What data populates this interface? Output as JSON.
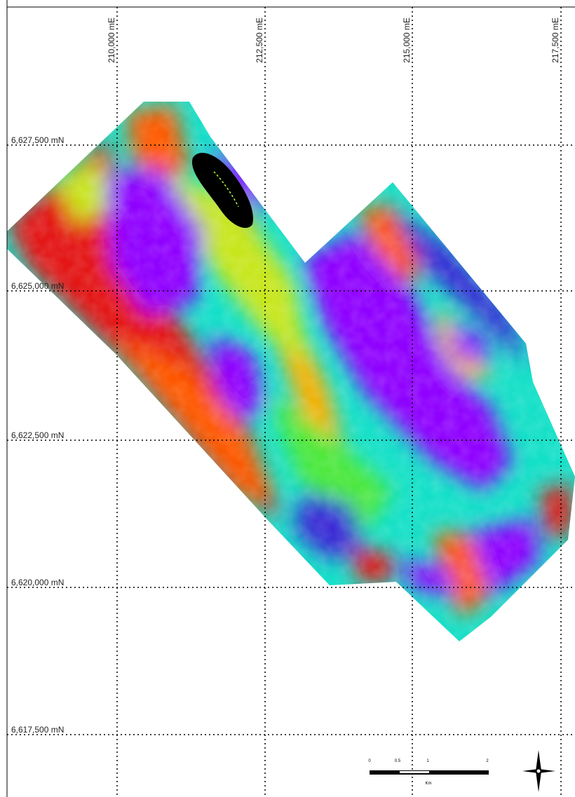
{
  "grid": {
    "eastings": [
      {
        "label": "210,000 mE"
      },
      {
        "label": "212,500 mE"
      },
      {
        "label": "215,000 mE"
      },
      {
        "label": "217,500 mE"
      }
    ],
    "northings": [
      {
        "label": "6,627,500 mN"
      },
      {
        "label": "6,625,000 mN"
      },
      {
        "label": "6,622,500 mN"
      },
      {
        "label": "6,620,000 mN"
      },
      {
        "label": "6,617,500 mN"
      }
    ]
  },
  "scale_bar": {
    "ticks": [
      "0",
      "0.5",
      "1",
      "2"
    ],
    "unit": "Km"
  },
  "colors": {
    "ramp": [
      "#8f00ff",
      "#3a2bd6",
      "#0aa0ff",
      "#14e0c8",
      "#4ce83a",
      "#c8e61e",
      "#ffb000",
      "#ff5a00",
      "#e41212"
    ],
    "grid_line": "#000000",
    "background": "#ffffff",
    "anomaly": "#000000"
  },
  "north_arrow": {
    "icon": "north-arrow-icon"
  }
}
